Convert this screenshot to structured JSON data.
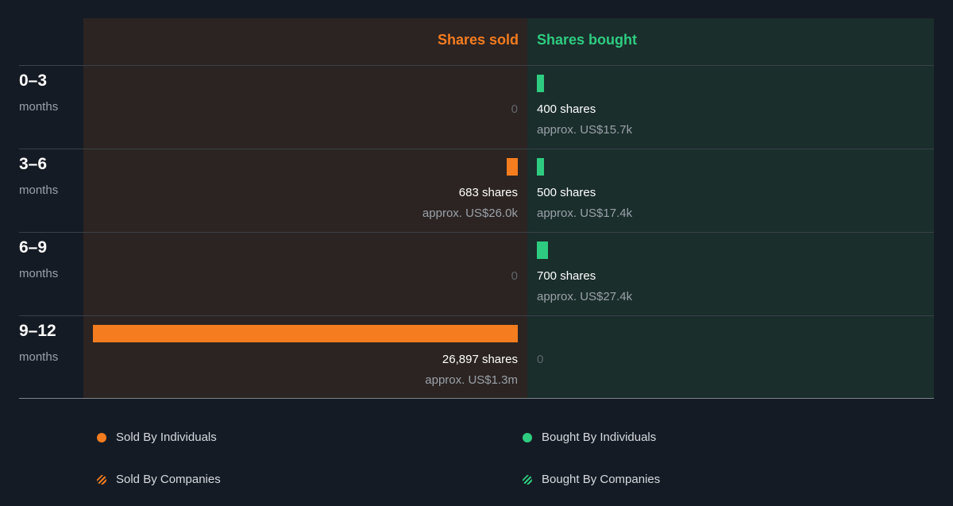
{
  "colors": {
    "sold": "#f57c1f",
    "bought": "#2ecc80",
    "sold_bg": "#2c2422",
    "bought_bg": "#1a2e2c",
    "page_bg": "#151b24"
  },
  "headers": {
    "sold": "Shares sold",
    "bought": "Shares bought"
  },
  "period_unit": "months",
  "legend": {
    "sold_individuals": "Sold By Individuals",
    "bought_individuals": "Bought By Individuals",
    "sold_companies": "Sold By Companies",
    "bought_companies": "Bought By Companies"
  },
  "chart_data": {
    "type": "bar",
    "categories": [
      "0–3",
      "3–6",
      "6–9",
      "9–12"
    ],
    "series": [
      {
        "name": "Shares sold",
        "values": [
          0,
          683,
          0,
          26897
        ]
      },
      {
        "name": "Shares bought",
        "values": [
          400,
          500,
          700,
          0
        ]
      }
    ],
    "rows": [
      {
        "period": "0–3",
        "sold": 0,
        "sold_label": "0",
        "sold_value": "",
        "bought": 400,
        "bought_label": "400 shares",
        "bought_value": "approx. US$15.7k"
      },
      {
        "period": "3–6",
        "sold": 683,
        "sold_label": "683 shares",
        "sold_value": "approx. US$26.0k",
        "bought": 500,
        "bought_label": "500 shares",
        "bought_value": "approx. US$17.4k"
      },
      {
        "period": "6–9",
        "sold": 0,
        "sold_label": "0",
        "sold_value": "",
        "bought": 700,
        "bought_label": "700 shares",
        "bought_value": "approx. US$27.4k"
      },
      {
        "period": "9–12",
        "sold": 26897,
        "sold_label": "26,897 shares",
        "sold_value": "approx. US$1.3m",
        "bought": 0,
        "bought_label": "0",
        "bought_value": ""
      }
    ]
  }
}
